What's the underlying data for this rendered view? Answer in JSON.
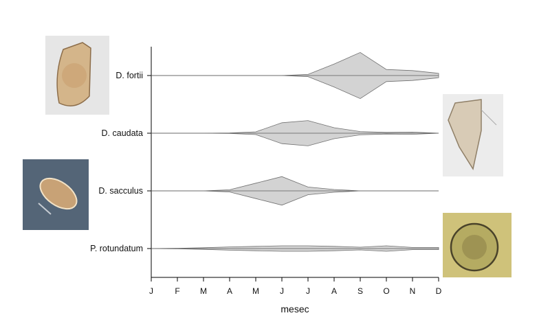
{
  "chart_data": {
    "type": "violin",
    "xlabel": "mesec",
    "categories": [
      "J",
      "F",
      "M",
      "A",
      "M",
      "J",
      "J",
      "A",
      "S",
      "O",
      "N",
      "D"
    ],
    "series": [
      {
        "name": "D. fortii",
        "values": [
          0,
          0,
          0,
          0,
          0,
          0,
          0.04,
          0.42,
          0.84,
          0.22,
          0.18,
          0.08
        ],
        "color": "#d3d3d3"
      },
      {
        "name": "D. caudata",
        "values": [
          0,
          0,
          0,
          0.01,
          0.05,
          0.38,
          0.46,
          0.2,
          0.06,
          0.03,
          0.04,
          0.0
        ],
        "color": "#d3d3d3"
      },
      {
        "name": "D. sacculus",
        "values": [
          0,
          0,
          0,
          0.04,
          0.28,
          0.52,
          0.14,
          0.05,
          0.0,
          0,
          0,
          0
        ],
        "color": "#d3d3d3"
      },
      {
        "name": "P. rotundatum",
        "values": [
          0,
          0.01,
          0.03,
          0.06,
          0.08,
          0.1,
          0.1,
          0.08,
          0.05,
          0.1,
          0.04,
          0.04
        ],
        "color": "#d3d3d3"
      }
    ],
    "images": [
      {
        "name": "D. fortii micrograph",
        "style": "brightfield"
      },
      {
        "name": "D. sacculus micrograph",
        "style": "darkfield"
      },
      {
        "name": "D. caudata micrograph",
        "style": "brightfield"
      },
      {
        "name": "P. rotundatum micrograph",
        "style": "yellow"
      }
    ]
  }
}
